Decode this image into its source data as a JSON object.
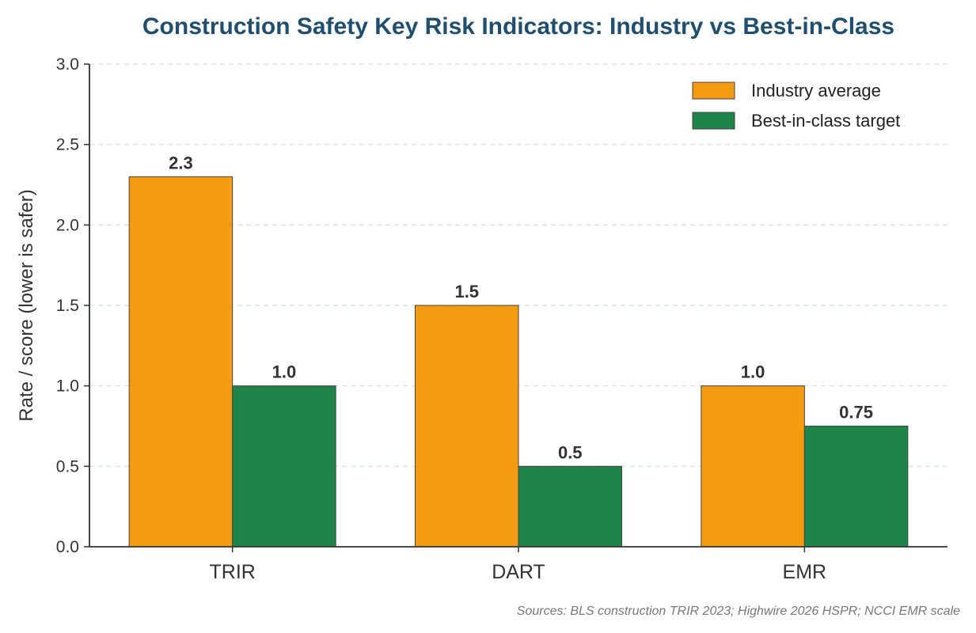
{
  "chart_data": {
    "type": "bar",
    "title": "Construction Safety Key Risk Indicators: Industry vs Best-in-Class",
    "xlabel": "",
    "ylabel": "Rate / score (lower is safer)",
    "categories": [
      "TRIR",
      "DART",
      "EMR"
    ],
    "series": [
      {
        "name": "Industry average",
        "values": [
          2.3,
          1.5,
          1.0
        ],
        "labels": [
          "2.3",
          "1.5",
          "1.0"
        ],
        "color": "#f39c12"
      },
      {
        "name": "Best-in-class target",
        "values": [
          1.0,
          0.5,
          0.75
        ],
        "labels": [
          "1.0",
          "0.5",
          "0.75"
        ],
        "color": "#1e8449"
      }
    ],
    "ylim": [
      0,
      3.0
    ],
    "yticks": [
      "0.0",
      "0.5",
      "1.0",
      "1.5",
      "2.0",
      "2.5",
      "3.0"
    ],
    "grid": "horizontal-dashed",
    "legend_position": "top-right",
    "source_note": "Sources: BLS construction TRIR 2023; Highwire 2026 HSPR; NCCI EMR scale"
  }
}
